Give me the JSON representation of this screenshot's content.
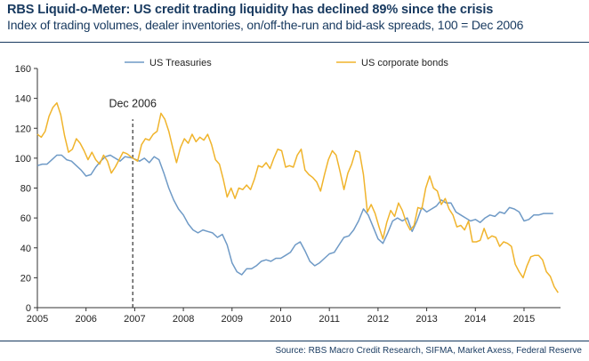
{
  "header": {
    "title": "RBS Liquid-o-Meter: US credit trading liquidity has declined 89% since the crisis",
    "subtitle": "Index of trading volumes, dealer inventories, on/off-the-run and bid-ask spreads, 100 = Dec 2006"
  },
  "footer": {
    "source": "Source: RBS Macro Credit Research, SIFMA, Market Axess, Federal Reserve"
  },
  "chart_data": {
    "type": "line",
    "title": "RBS Liquid-o-Meter: US credit trading liquidity has declined 89% since the crisis",
    "subtitle": "Index of trading volumes, dealer inventories, on/off-the-run and bid-ask spreads, 100 = Dec 2006",
    "xlabel": "",
    "ylabel": "",
    "xlim": [
      2005,
      2015.75
    ],
    "ylim": [
      0,
      160
    ],
    "x_ticks": [
      "2005",
      "2006",
      "2007",
      "2008",
      "2009",
      "2010",
      "2011",
      "2012",
      "2013",
      "2014",
      "2015"
    ],
    "y_ticks": [
      "0",
      "20",
      "40",
      "60",
      "80",
      "100",
      "120",
      "140",
      "160"
    ],
    "grid": false,
    "legend_position": "top",
    "colors": {
      "treasuries": "#6f9ac6",
      "corporates": "#f0b42c",
      "axis": "#333333",
      "annotation": "#333333"
    },
    "annotations": [
      {
        "x": 2006.96,
        "label": "Dec 2006",
        "style": "dashed-vertical-line"
      }
    ],
    "series": [
      {
        "name": "US Treasuries",
        "color": "#6f9ac6",
        "points": [
          [
            2005.0,
            95
          ],
          [
            2005.1,
            96
          ],
          [
            2005.2,
            96
          ],
          [
            2005.3,
            99
          ],
          [
            2005.4,
            102
          ],
          [
            2005.5,
            102
          ],
          [
            2005.6,
            99
          ],
          [
            2005.7,
            98
          ],
          [
            2005.8,
            95
          ],
          [
            2005.9,
            92
          ],
          [
            2006.0,
            88
          ],
          [
            2006.1,
            89
          ],
          [
            2006.2,
            94
          ],
          [
            2006.3,
            98
          ],
          [
            2006.4,
            101
          ],
          [
            2006.5,
            102
          ],
          [
            2006.6,
            100
          ],
          [
            2006.7,
            98
          ],
          [
            2006.8,
            101
          ],
          [
            2006.96,
            100
          ],
          [
            2007.1,
            98
          ],
          [
            2007.2,
            100
          ],
          [
            2007.3,
            97
          ],
          [
            2007.4,
            101
          ],
          [
            2007.5,
            99
          ],
          [
            2007.6,
            90
          ],
          [
            2007.7,
            80
          ],
          [
            2007.8,
            72
          ],
          [
            2007.9,
            66
          ],
          [
            2008.0,
            62
          ],
          [
            2008.1,
            56
          ],
          [
            2008.2,
            52
          ],
          [
            2008.3,
            50
          ],
          [
            2008.4,
            52
          ],
          [
            2008.5,
            51
          ],
          [
            2008.6,
            50
          ],
          [
            2008.7,
            47
          ],
          [
            2008.8,
            49
          ],
          [
            2008.9,
            42
          ],
          [
            2009.0,
            30
          ],
          [
            2009.1,
            24
          ],
          [
            2009.2,
            22
          ],
          [
            2009.3,
            26
          ],
          [
            2009.4,
            26
          ],
          [
            2009.5,
            28
          ],
          [
            2009.6,
            31
          ],
          [
            2009.7,
            32
          ],
          [
            2009.8,
            31
          ],
          [
            2009.9,
            33
          ],
          [
            2010.0,
            33
          ],
          [
            2010.1,
            35
          ],
          [
            2010.2,
            37
          ],
          [
            2010.3,
            42
          ],
          [
            2010.4,
            44
          ],
          [
            2010.5,
            38
          ],
          [
            2010.6,
            31
          ],
          [
            2010.7,
            28
          ],
          [
            2010.8,
            30
          ],
          [
            2010.9,
            33
          ],
          [
            2011.0,
            36
          ],
          [
            2011.1,
            37
          ],
          [
            2011.2,
            42
          ],
          [
            2011.3,
            47
          ],
          [
            2011.4,
            48
          ],
          [
            2011.5,
            52
          ],
          [
            2011.6,
            58
          ],
          [
            2011.7,
            66
          ],
          [
            2011.8,
            62
          ],
          [
            2011.9,
            54
          ],
          [
            2012.0,
            46
          ],
          [
            2012.1,
            43
          ],
          [
            2012.2,
            50
          ],
          [
            2012.3,
            58
          ],
          [
            2012.4,
            60
          ],
          [
            2012.5,
            58
          ],
          [
            2012.6,
            60
          ],
          [
            2012.7,
            51
          ],
          [
            2012.8,
            58
          ],
          [
            2012.9,
            67
          ],
          [
            2013.0,
            64
          ],
          [
            2013.1,
            66
          ],
          [
            2013.2,
            68
          ],
          [
            2013.3,
            72
          ],
          [
            2013.4,
            70
          ],
          [
            2013.5,
            70
          ],
          [
            2013.6,
            64
          ],
          [
            2013.7,
            62
          ],
          [
            2013.8,
            60
          ],
          [
            2013.9,
            58
          ],
          [
            2014.0,
            59
          ],
          [
            2014.1,
            57
          ],
          [
            2014.2,
            60
          ],
          [
            2014.3,
            62
          ],
          [
            2014.4,
            61
          ],
          [
            2014.5,
            64
          ],
          [
            2014.6,
            63
          ],
          [
            2014.7,
            67
          ],
          [
            2014.8,
            66
          ],
          [
            2014.9,
            64
          ],
          [
            2015.0,
            58
          ],
          [
            2015.1,
            59
          ],
          [
            2015.2,
            62
          ],
          [
            2015.3,
            62
          ],
          [
            2015.4,
            63
          ],
          [
            2015.5,
            63
          ],
          [
            2015.6,
            63
          ]
        ]
      },
      {
        "name": "US corporate bonds",
        "color": "#f0b42c",
        "points": [
          [
            2005.0,
            116
          ],
          [
            2005.08,
            114
          ],
          [
            2005.16,
            118
          ],
          [
            2005.24,
            128
          ],
          [
            2005.32,
            134
          ],
          [
            2005.4,
            137
          ],
          [
            2005.48,
            129
          ],
          [
            2005.56,
            115
          ],
          [
            2005.64,
            104
          ],
          [
            2005.72,
            106
          ],
          [
            2005.8,
            113
          ],
          [
            2005.88,
            110
          ],
          [
            2005.96,
            105
          ],
          [
            2006.04,
            99
          ],
          [
            2006.12,
            104
          ],
          [
            2006.2,
            99
          ],
          [
            2006.28,
            96
          ],
          [
            2006.36,
            102
          ],
          [
            2006.44,
            98
          ],
          [
            2006.52,
            90
          ],
          [
            2006.6,
            94
          ],
          [
            2006.68,
            99
          ],
          [
            2006.76,
            104
          ],
          [
            2006.84,
            103
          ],
          [
            2006.96,
            100
          ],
          [
            2007.06,
            98
          ],
          [
            2007.14,
            109
          ],
          [
            2007.22,
            113
          ],
          [
            2007.3,
            112
          ],
          [
            2007.38,
            116
          ],
          [
            2007.46,
            118
          ],
          [
            2007.54,
            130
          ],
          [
            2007.62,
            126
          ],
          [
            2007.7,
            118
          ],
          [
            2007.78,
            107
          ],
          [
            2007.86,
            97
          ],
          [
            2007.94,
            107
          ],
          [
            2008.02,
            113
          ],
          [
            2008.1,
            110
          ],
          [
            2008.18,
            116
          ],
          [
            2008.26,
            111
          ],
          [
            2008.34,
            114
          ],
          [
            2008.42,
            112
          ],
          [
            2008.5,
            116
          ],
          [
            2008.58,
            109
          ],
          [
            2008.66,
            99
          ],
          [
            2008.74,
            96
          ],
          [
            2008.82,
            86
          ],
          [
            2008.9,
            74
          ],
          [
            2008.98,
            80
          ],
          [
            2009.06,
            73
          ],
          [
            2009.14,
            80
          ],
          [
            2009.22,
            79
          ],
          [
            2009.3,
            82
          ],
          [
            2009.38,
            79
          ],
          [
            2009.46,
            86
          ],
          [
            2009.54,
            95
          ],
          [
            2009.62,
            94
          ],
          [
            2009.7,
            97
          ],
          [
            2009.78,
            93
          ],
          [
            2009.86,
            100
          ],
          [
            2009.94,
            106
          ],
          [
            2010.02,
            105
          ],
          [
            2010.1,
            94
          ],
          [
            2010.18,
            95
          ],
          [
            2010.26,
            94
          ],
          [
            2010.34,
            102
          ],
          [
            2010.42,
            106
          ],
          [
            2010.5,
            92
          ],
          [
            2010.58,
            89
          ],
          [
            2010.66,
            87
          ],
          [
            2010.74,
            84
          ],
          [
            2010.82,
            78
          ],
          [
            2010.9,
            89
          ],
          [
            2010.98,
            99
          ],
          [
            2011.06,
            105
          ],
          [
            2011.14,
            102
          ],
          [
            2011.22,
            91
          ],
          [
            2011.3,
            79
          ],
          [
            2011.38,
            90
          ],
          [
            2011.46,
            96
          ],
          [
            2011.54,
            105
          ],
          [
            2011.62,
            104
          ],
          [
            2011.7,
            89
          ],
          [
            2011.78,
            64
          ],
          [
            2011.86,
            69
          ],
          [
            2011.94,
            63
          ],
          [
            2012.02,
            54
          ],
          [
            2012.1,
            46
          ],
          [
            2012.18,
            57
          ],
          [
            2012.26,
            65
          ],
          [
            2012.34,
            61
          ],
          [
            2012.42,
            70
          ],
          [
            2012.5,
            65
          ],
          [
            2012.58,
            57
          ],
          [
            2012.66,
            52
          ],
          [
            2012.74,
            55
          ],
          [
            2012.82,
            67
          ],
          [
            2012.9,
            66
          ],
          [
            2012.98,
            80
          ],
          [
            2013.06,
            88
          ],
          [
            2013.14,
            80
          ],
          [
            2013.22,
            78
          ],
          [
            2013.3,
            69
          ],
          [
            2013.38,
            73
          ],
          [
            2013.46,
            66
          ],
          [
            2013.54,
            62
          ],
          [
            2013.62,
            54
          ],
          [
            2013.7,
            55
          ],
          [
            2013.78,
            52
          ],
          [
            2013.86,
            58
          ],
          [
            2013.94,
            44
          ],
          [
            2014.02,
            44
          ],
          [
            2014.1,
            45
          ],
          [
            2014.18,
            53
          ],
          [
            2014.26,
            46
          ],
          [
            2014.34,
            48
          ],
          [
            2014.42,
            47
          ],
          [
            2014.5,
            41
          ],
          [
            2014.58,
            44
          ],
          [
            2014.66,
            43
          ],
          [
            2014.74,
            41
          ],
          [
            2014.82,
            29
          ],
          [
            2014.9,
            24
          ],
          [
            2014.98,
            20
          ],
          [
            2015.06,
            28
          ],
          [
            2015.14,
            34
          ],
          [
            2015.22,
            35
          ],
          [
            2015.3,
            35
          ],
          [
            2015.38,
            32
          ],
          [
            2015.46,
            24
          ],
          [
            2015.54,
            21
          ],
          [
            2015.62,
            14
          ],
          [
            2015.7,
            10
          ]
        ]
      }
    ]
  }
}
